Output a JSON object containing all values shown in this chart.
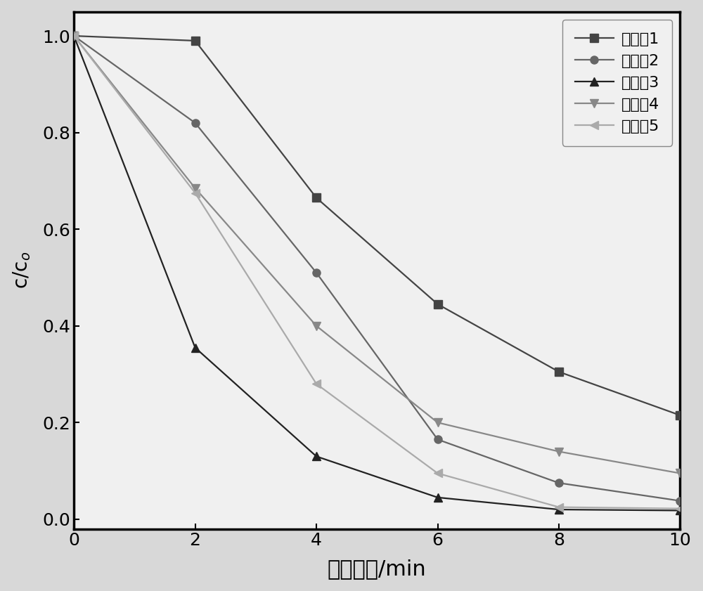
{
  "series": [
    {
      "label": "实施例1",
      "x": [
        0,
        2,
        4,
        6,
        8,
        10
      ],
      "y": [
        1.0,
        0.99,
        0.665,
        0.445,
        0.305,
        0.215
      ],
      "marker": "s",
      "color": "#444444",
      "markersize": 8,
      "linewidth": 1.6
    },
    {
      "label": "实施例2",
      "x": [
        0,
        2,
        4,
        6,
        8,
        10
      ],
      "y": [
        1.0,
        0.82,
        0.51,
        0.165,
        0.075,
        0.038
      ],
      "marker": "o",
      "color": "#666666",
      "markersize": 8,
      "linewidth": 1.6
    },
    {
      "label": "实施例3",
      "x": [
        0,
        2,
        4,
        6,
        8,
        10
      ],
      "y": [
        1.0,
        0.355,
        0.13,
        0.045,
        0.02,
        0.018
      ],
      "marker": "^",
      "color": "#222222",
      "markersize": 8,
      "linewidth": 1.6
    },
    {
      "label": "实施例4",
      "x": [
        0,
        2,
        4,
        6,
        8,
        10
      ],
      "y": [
        1.0,
        0.685,
        0.4,
        0.2,
        0.14,
        0.095
      ],
      "marker": "v",
      "color": "#888888",
      "markersize": 8,
      "linewidth": 1.6
    },
    {
      "label": "实施例5",
      "x": [
        0,
        2,
        4,
        6,
        8,
        10
      ],
      "y": [
        1.0,
        0.675,
        0.28,
        0.095,
        0.025,
        0.022
      ],
      "marker": "<",
      "color": "#aaaaaa",
      "markersize": 8,
      "linewidth": 1.6
    }
  ],
  "xlabel": "吸光时间/min",
  "ylabel_top": "c/c",
  "ylabel_sub": "o",
  "xlim": [
    0,
    10
  ],
  "ylim": [
    -0.02,
    1.05
  ],
  "xticks": [
    0,
    2,
    4,
    6,
    8,
    10
  ],
  "yticks": [
    0.0,
    0.2,
    0.4,
    0.6,
    0.8,
    1.0
  ],
  "xlabel_fontsize": 22,
  "ylabel_fontsize": 20,
  "tick_fontsize": 18,
  "legend_fontsize": 16,
  "outer_bg_color": "#d8d8d8",
  "plot_bg_color": "#f0f0f0",
  "legend_bg_color": "#f0f0f0"
}
